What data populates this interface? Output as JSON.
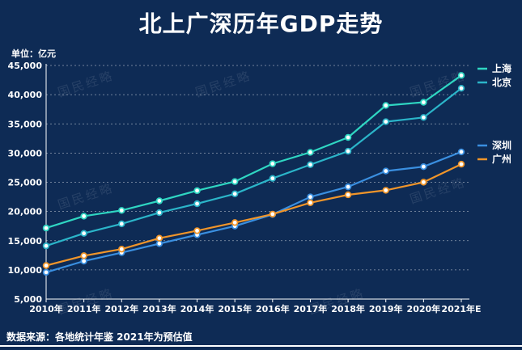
{
  "title": "北上广深历年GDP走势",
  "unit_label": "单位：亿元",
  "source_note": "数据来源：各地统计年鉴  2021年为预估值",
  "watermark_text": "国民经略",
  "chart_data": {
    "type": "line",
    "title": "北上广深历年GDP走势",
    "ylabel": "单位：亿元",
    "categories": [
      "2010年",
      "2011年",
      "2012年",
      "2013年",
      "2014年",
      "2015年",
      "2016年",
      "2017年",
      "2018年",
      "2019年",
      "2020年",
      "2021年E"
    ],
    "ylim": [
      5000,
      45000
    ],
    "yticks": [
      "5,000",
      "10,000",
      "15,000",
      "20,000",
      "25,000",
      "30,000",
      "35,000",
      "40,000",
      "45,000"
    ],
    "grid": true,
    "legend_position": "right",
    "series": [
      {
        "name": "上海",
        "color": "#2fd6c2",
        "values": [
          17166,
          19196,
          20182,
          21818,
          23568,
          25123,
          28179,
          30133,
          32680,
          38155,
          38701,
          43300
        ]
      },
      {
        "name": "北京",
        "color": "#2bb5c9",
        "values": [
          14114,
          16252,
          17879,
          19800,
          21331,
          23015,
          25669,
          28015,
          30320,
          35371,
          36103,
          41100
        ]
      },
      {
        "name": "深圳",
        "color": "#3a8fe0",
        "values": [
          9582,
          11506,
          12950,
          14500,
          16002,
          17503,
          19493,
          22490,
          24222,
          26927,
          27670,
          30200
        ]
      },
      {
        "name": "广州",
        "color": "#f0952a",
        "values": [
          10748,
          12423,
          13551,
          15420,
          16707,
          18100,
          19547,
          21503,
          22859,
          23629,
          25019,
          28100
        ]
      }
    ]
  }
}
